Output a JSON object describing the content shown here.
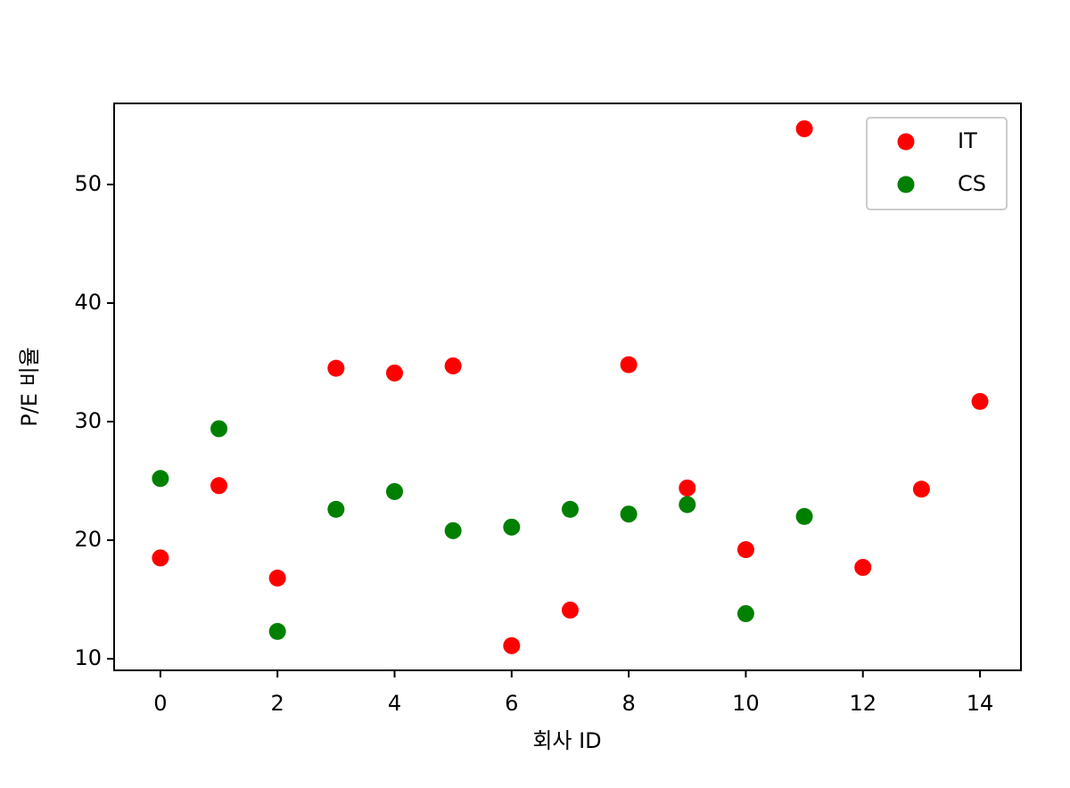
{
  "chart_data": {
    "type": "scatter",
    "x_label": "회사 ID",
    "y_label": "P/E 비율",
    "series": [
      {
        "name": "IT",
        "color": "#ff0000",
        "x": [
          0,
          1,
          2,
          3,
          4,
          5,
          6,
          7,
          8,
          9,
          10,
          11,
          12,
          13,
          14
        ],
        "values": [
          18.5,
          24.6,
          16.8,
          34.5,
          34.1,
          34.7,
          11.1,
          14.1,
          34.8,
          24.4,
          19.2,
          54.7,
          17.7,
          24.3,
          31.7
        ]
      },
      {
        "name": "CS",
        "color": "#008000",
        "x": [
          0,
          1,
          2,
          3,
          4,
          5,
          6,
          7,
          8,
          9,
          10,
          11
        ],
        "values": [
          25.2,
          29.4,
          12.3,
          22.6,
          24.1,
          20.8,
          21.1,
          22.6,
          22.2,
          23.0,
          13.8,
          22.0
        ]
      }
    ],
    "xlim": [
      -0.79,
      14.7
    ],
    "ylim": [
      9.02,
      56.84
    ],
    "xticks": [
      0,
      2,
      4,
      6,
      8,
      10,
      12,
      14
    ],
    "yticks": [
      10,
      20,
      30,
      40,
      50
    ],
    "legend": "upper right"
  }
}
